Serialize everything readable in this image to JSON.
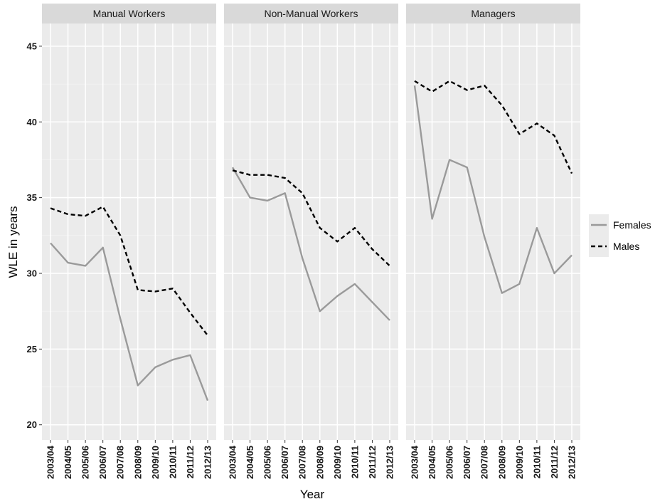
{
  "chart_data": {
    "type": "line",
    "facet_by": "occupation",
    "facets": [
      "Manual Workers",
      "Non-Manual Workers",
      "Managers"
    ],
    "categories": [
      "2003/04",
      "2004/05",
      "2005/06",
      "2006/07",
      "2007/08",
      "2008/09",
      "2009/10",
      "2010/11",
      "2011/12",
      "2012/13"
    ],
    "xlabel": "Year",
    "ylabel": "WLE in years",
    "ylim": [
      19,
      46.5
    ],
    "yticks": [
      20,
      25,
      30,
      35,
      40,
      45
    ],
    "grid": true,
    "legend_position": "right",
    "series": [
      {
        "name": "Females",
        "style": "solid",
        "color": "#9a9a9a",
        "values": [
          [
            32.0,
            30.7,
            30.5,
            31.7,
            27.0,
            22.6,
            23.8,
            24.3,
            24.6,
            21.6
          ],
          [
            37.0,
            35.0,
            34.8,
            35.3,
            31.0,
            27.5,
            28.5,
            29.3,
            28.1,
            26.9
          ],
          [
            42.4,
            33.6,
            37.5,
            37.0,
            32.4,
            28.7,
            29.3,
            33.0,
            30.0,
            31.2
          ]
        ]
      },
      {
        "name": "Males",
        "style": "dashed",
        "color": "#000000",
        "values": [
          [
            34.3,
            33.9,
            33.8,
            34.4,
            32.5,
            28.9,
            28.8,
            29.0,
            27.4,
            25.9
          ],
          [
            36.8,
            36.5,
            36.5,
            36.3,
            35.3,
            33.0,
            32.1,
            33.0,
            31.6,
            30.5
          ],
          [
            42.7,
            42.0,
            42.7,
            42.1,
            42.4,
            41.1,
            39.2,
            39.9,
            39.1,
            36.6
          ]
        ]
      }
    ]
  },
  "colors": {
    "panel_background": "#ebebeb",
    "strip_background": "#d9d9d9",
    "grid_major": "#ffffff",
    "grid_minor": "#f4f4f4"
  }
}
